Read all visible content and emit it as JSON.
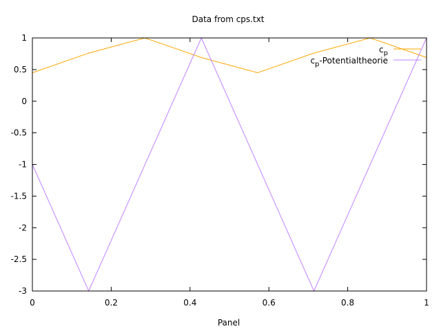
{
  "chart_data": {
    "type": "line",
    "title": "Data from cps.txt",
    "xlabel": "Panel",
    "ylabel": "",
    "xlim": [
      0,
      1
    ],
    "ylim": [
      -3,
      1
    ],
    "xticks": [
      0,
      0.2,
      0.4,
      0.6,
      0.8,
      1
    ],
    "xtick_labels": [
      "0",
      "0.2",
      "0.4",
      "0.6",
      "0.8",
      "1"
    ],
    "yticks": [
      -3,
      -2.5,
      -2,
      -1.5,
      -1,
      -0.5,
      0,
      0.5,
      1
    ],
    "ytick_labels": [
      "-3",
      "-2.5",
      "-2",
      "-1.5",
      "-1",
      "-0.5",
      "0",
      "0.5",
      "1"
    ],
    "grid": false,
    "legend_position": "top-right",
    "series": [
      {
        "name_base": "c",
        "name_sub": "p",
        "name_rest": "",
        "color": "#FFA500",
        "x": [
          0,
          0.1429,
          0.2857,
          0.4286,
          0.5714,
          0.7143,
          0.8571,
          1
        ],
        "y": [
          0.45,
          0.76,
          1.0,
          0.69,
          0.45,
          0.76,
          1.0,
          0.69
        ]
      },
      {
        "name_base": "c",
        "name_sub": "p",
        "name_rest": "-Potentialtheorie",
        "color": "#C080FF",
        "x": [
          0,
          0.1429,
          0.4286,
          0.7143,
          1
        ],
        "y": [
          -1,
          -3,
          1,
          -3,
          1
        ]
      }
    ]
  }
}
